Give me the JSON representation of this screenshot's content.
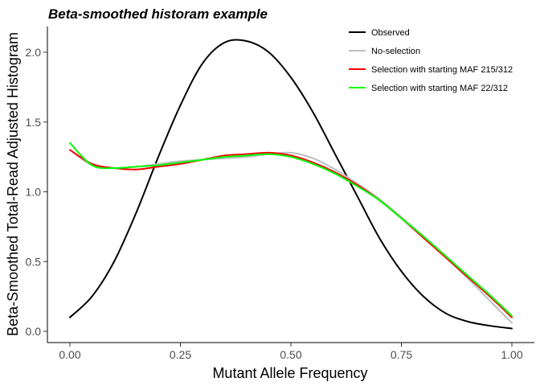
{
  "chart_data": {
    "type": "line",
    "title": "Beta-smoothed historam example",
    "xlabel": "Mutant Allele Frequency",
    "ylabel": "Beta-Smoothed Total-Read Adjusted Histogram",
    "xlim": [
      0,
      1
    ],
    "ylim": [
      0,
      2.15
    ],
    "x_ticks": [
      "0.00",
      "0.25",
      "0.50",
      "0.75",
      "1.00"
    ],
    "y_ticks": [
      "0.0",
      "0.5",
      "1.0",
      "1.5",
      "2.0"
    ],
    "grid": false,
    "legend_position": "top-right",
    "series": [
      {
        "name": "Observed",
        "color": "#000000",
        "x": [
          0,
          0.05,
          0.1,
          0.15,
          0.2,
          0.25,
          0.3,
          0.35,
          0.4,
          0.45,
          0.5,
          0.55,
          0.6,
          0.65,
          0.7,
          0.75,
          0.8,
          0.85,
          0.9,
          0.95,
          1.0
        ],
        "y": [
          0.1,
          0.25,
          0.5,
          0.85,
          1.25,
          1.62,
          1.92,
          2.07,
          2.08,
          2.0,
          1.82,
          1.57,
          1.27,
          0.97,
          0.67,
          0.43,
          0.25,
          0.13,
          0.07,
          0.04,
          0.02
        ]
      },
      {
        "name": "No-selection",
        "color": "#bebebe",
        "x": [
          0,
          0.05,
          0.1,
          0.15,
          0.2,
          0.25,
          0.3,
          0.35,
          0.4,
          0.45,
          0.5,
          0.55,
          0.6,
          0.65,
          0.7,
          0.75,
          0.8,
          0.85,
          0.9,
          0.95,
          1.0
        ],
        "y": [
          1.3,
          1.19,
          1.17,
          1.18,
          1.2,
          1.22,
          1.23,
          1.24,
          1.25,
          1.27,
          1.28,
          1.24,
          1.16,
          1.06,
          0.95,
          0.82,
          0.68,
          0.53,
          0.38,
          0.22,
          0.06
        ]
      },
      {
        "name": "Selection with starting MAF 215/312",
        "color": "#ff0000",
        "x": [
          0,
          0.05,
          0.1,
          0.15,
          0.2,
          0.25,
          0.3,
          0.35,
          0.4,
          0.45,
          0.5,
          0.55,
          0.6,
          0.65,
          0.7,
          0.75,
          0.8,
          0.85,
          0.9,
          0.95,
          1.0
        ],
        "y": [
          1.3,
          1.2,
          1.17,
          1.16,
          1.18,
          1.2,
          1.23,
          1.26,
          1.27,
          1.28,
          1.26,
          1.21,
          1.14,
          1.05,
          0.94,
          0.81,
          0.67,
          0.53,
          0.39,
          0.25,
          0.1
        ]
      },
      {
        "name": "Selection with starting MAF 22/312",
        "color": "#00ff00",
        "x": [
          0,
          0.05,
          0.1,
          0.15,
          0.2,
          0.25,
          0.3,
          0.35,
          0.4,
          0.45,
          0.5,
          0.55,
          0.6,
          0.65,
          0.7,
          0.75,
          0.8,
          0.85,
          0.9,
          0.95,
          1.0
        ],
        "y": [
          1.35,
          1.19,
          1.17,
          1.18,
          1.19,
          1.21,
          1.23,
          1.25,
          1.26,
          1.27,
          1.25,
          1.2,
          1.13,
          1.04,
          0.94,
          0.81,
          0.68,
          0.54,
          0.4,
          0.26,
          0.11
        ]
      }
    ]
  }
}
